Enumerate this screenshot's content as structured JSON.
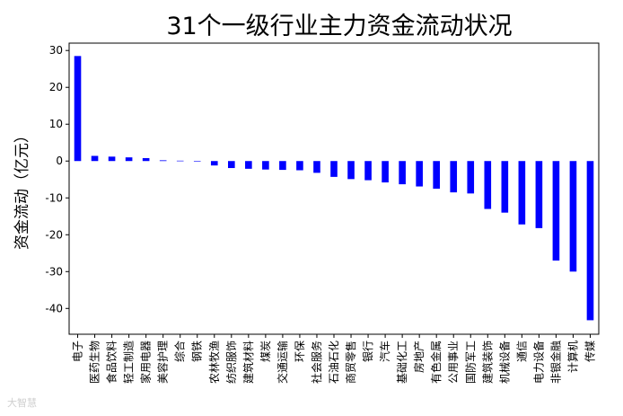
{
  "chart_data": {
    "type": "bar",
    "title": "31个一级行业主力资金流动状况",
    "xlabel": "",
    "ylabel": "资金流动（亿元）",
    "ylim": [
      -47,
      32
    ],
    "yticks": [
      30,
      20,
      10,
      0,
      -10,
      -20,
      -30,
      -40
    ],
    "grid": false,
    "bar_color": "#0000ff",
    "categories": [
      "电子",
      "医药生物",
      "食品饮料",
      "轻工制造",
      "家用电器",
      "美容护理",
      "综合",
      "钢铁",
      "农林牧渔",
      "纺织服饰",
      "建筑材料",
      "煤炭",
      "交通运输",
      "环保",
      "社会服务",
      "石油石化",
      "商贸零售",
      "银行",
      "汽车",
      "基础化工",
      "房地产",
      "有色金属",
      "公用事业",
      "国防军工",
      "建筑装饰",
      "机械设备",
      "通信",
      "电力设备",
      "非银金融",
      "计算机",
      "传媒"
    ],
    "values": [
      28.5,
      1.4,
      1.2,
      1.0,
      0.8,
      0.2,
      0.1,
      -0.1,
      -1.2,
      -1.9,
      -2.1,
      -2.3,
      -2.4,
      -2.5,
      -3.2,
      -4.3,
      -4.9,
      -5.2,
      -5.8,
      -6.3,
      -6.9,
      -7.5,
      -8.5,
      -8.8,
      -13.0,
      -14.0,
      -17.2,
      -18.2,
      -27.0,
      -30.0,
      -43.2
    ]
  },
  "watermark": "大智慧"
}
